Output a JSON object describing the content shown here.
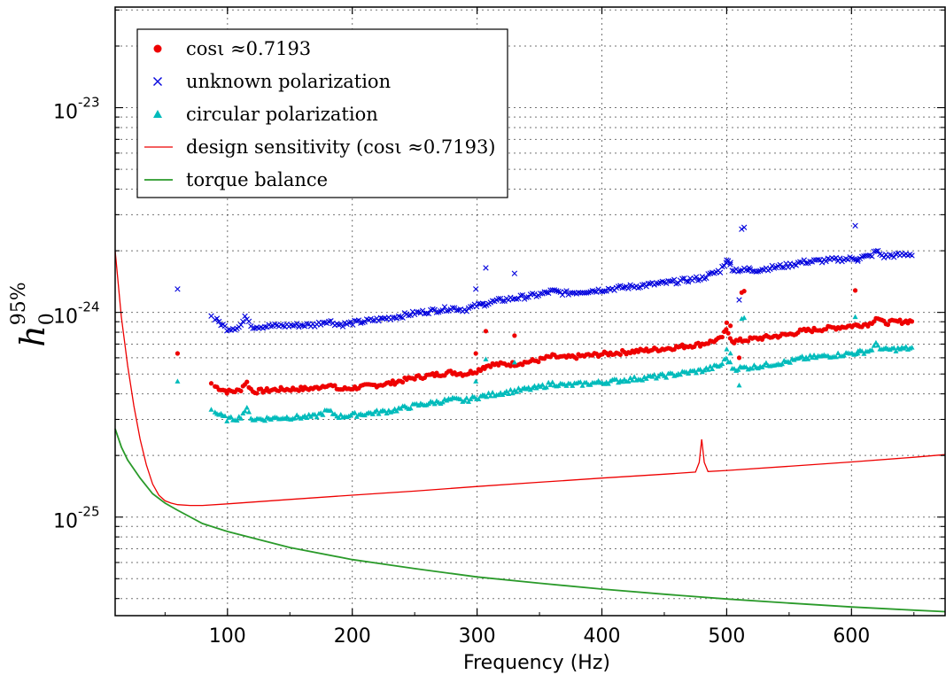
{
  "chart_data": {
    "type": "scatter",
    "title": "",
    "xlabel": "Frequency (Hz)",
    "ylabel": "h_0^{95%}",
    "ylabel_main": "h",
    "ylabel_sub": "0",
    "ylabel_sup": "95%",
    "xlim": [
      10,
      675
    ],
    "ylim": [
      3.3e-26,
      3.1e-23
    ],
    "yscale": "log",
    "grid": true,
    "legend_position": "top-left",
    "x_ticks": [
      {
        "value": 100,
        "label": "100"
      },
      {
        "value": 200,
        "label": "200"
      },
      {
        "value": 300,
        "label": "300"
      },
      {
        "value": 400,
        "label": "400"
      },
      {
        "value": 500,
        "label": "500"
      },
      {
        "value": 600,
        "label": "600"
      }
    ],
    "y_ticks": [
      {
        "value": 1e-25,
        "base": "10",
        "exp": "-25"
      },
      {
        "value": 1e-24,
        "base": "10",
        "exp": "-24"
      },
      {
        "value": 1e-23,
        "base": "10",
        "exp": "-23"
      }
    ],
    "series": [
      {
        "name": "cosι ≈0.7193",
        "marker": "circle",
        "color": "#ee0000",
        "anchors": [
          [
            90,
            4.35e-25
          ],
          [
            100,
            4.1e-25
          ],
          [
            110,
            4.15e-25
          ],
          [
            115,
            4.6e-25
          ],
          [
            120,
            4.1e-25
          ],
          [
            140,
            4.2e-25
          ],
          [
            170,
            4.25e-25
          ],
          [
            180,
            4.45e-25
          ],
          [
            190,
            4.2e-25
          ],
          [
            230,
            4.5e-25
          ],
          [
            250,
            4.8e-25
          ],
          [
            280,
            5.1e-25
          ],
          [
            290,
            5e-25
          ],
          [
            300,
            5.2e-25
          ],
          [
            310,
            5.55e-25
          ],
          [
            330,
            5.6e-25
          ],
          [
            350,
            5.85e-25
          ],
          [
            360,
            6.1e-25
          ],
          [
            370,
            6e-25
          ],
          [
            400,
            6.25e-25
          ],
          [
            450,
            6.65e-25
          ],
          [
            480,
            7e-25
          ],
          [
            495,
            7.4e-25
          ],
          [
            500,
            8.2e-25
          ],
          [
            505,
            7.2e-25
          ],
          [
            520,
            7.4e-25
          ],
          [
            550,
            7.8e-25
          ],
          [
            560,
            8.1e-25
          ],
          [
            600,
            8.6e-25
          ],
          [
            615,
            8.8e-25
          ],
          [
            620,
            9.5e-25
          ],
          [
            625,
            8.9e-25
          ],
          [
            650,
            9.1e-25
          ]
        ],
        "outliers": [
          [
            60,
            6.3e-25
          ],
          [
            87,
            4.5e-25
          ],
          [
            299,
            6.3e-25
          ],
          [
            305,
            5.4e-25
          ],
          [
            307,
            8.1e-25
          ],
          [
            330,
            7.7e-25
          ],
          [
            500,
            8.9e-25
          ],
          [
            503,
            8.6e-25
          ],
          [
            510,
            6e-25
          ],
          [
            512,
            1.25e-24
          ],
          [
            514,
            1.27e-24
          ],
          [
            603,
            1.28e-24
          ],
          [
            605,
            8.6e-25
          ]
        ]
      },
      {
        "name": "unknown polarization",
        "marker": "x",
        "color": "#0000dd",
        "anchors": [
          [
            90,
            9.3e-25
          ],
          [
            100,
            8.3e-25
          ],
          [
            110,
            8.5e-25
          ],
          [
            115,
            9.6e-25
          ],
          [
            120,
            8.5e-25
          ],
          [
            140,
            8.6e-25
          ],
          [
            170,
            8.7e-25
          ],
          [
            180,
            9.1e-25
          ],
          [
            190,
            8.7e-25
          ],
          [
            230,
            9.4e-25
          ],
          [
            250,
            9.9e-25
          ],
          [
            280,
            1.05e-24
          ],
          [
            290,
            1.03e-24
          ],
          [
            300,
            1.08e-24
          ],
          [
            320,
            1.15e-24
          ],
          [
            350,
            1.22e-24
          ],
          [
            360,
            1.27e-24
          ],
          [
            370,
            1.24e-24
          ],
          [
            400,
            1.29e-24
          ],
          [
            450,
            1.39e-24
          ],
          [
            480,
            1.47e-24
          ],
          [
            495,
            1.6e-24
          ],
          [
            500,
            1.8e-24
          ],
          [
            505,
            1.62e-24
          ],
          [
            520,
            1.6e-24
          ],
          [
            550,
            1.7e-24
          ],
          [
            560,
            1.76e-24
          ],
          [
            600,
            1.83e-24
          ],
          [
            615,
            1.88e-24
          ],
          [
            620,
            2e-24
          ],
          [
            625,
            1.88e-24
          ],
          [
            650,
            1.93e-24
          ]
        ],
        "outliers": [
          [
            60,
            1.3e-24
          ],
          [
            87,
            9.6e-25
          ],
          [
            299,
            1.3e-24
          ],
          [
            305,
            1.1e-24
          ],
          [
            307,
            1.65e-24
          ],
          [
            330,
            1.55e-24
          ],
          [
            500,
            1.8e-24
          ],
          [
            503,
            1.75e-24
          ],
          [
            510,
            1.15e-24
          ],
          [
            512,
            2.55e-24
          ],
          [
            514,
            2.6e-24
          ],
          [
            518,
            1.65e-24
          ],
          [
            603,
            2.65e-24
          ],
          [
            605,
            1.78e-24
          ]
        ]
      },
      {
        "name": "circular polarization",
        "marker": "triangle",
        "color": "#00bbbb",
        "anchors": [
          [
            90,
            3.25e-25
          ],
          [
            100,
            3e-25
          ],
          [
            110,
            3.05e-25
          ],
          [
            115,
            3.4e-25
          ],
          [
            120,
            3e-25
          ],
          [
            140,
            3.05e-25
          ],
          [
            170,
            3.1e-25
          ],
          [
            180,
            3.3e-25
          ],
          [
            190,
            3.1e-25
          ],
          [
            230,
            3.3e-25
          ],
          [
            250,
            3.5e-25
          ],
          [
            280,
            3.75e-25
          ],
          [
            290,
            3.7e-25
          ],
          [
            300,
            3.85e-25
          ],
          [
            320,
            4.05e-25
          ],
          [
            350,
            4.3e-25
          ],
          [
            360,
            4.5e-25
          ],
          [
            370,
            4.4e-25
          ],
          [
            400,
            4.55e-25
          ],
          [
            450,
            4.9e-25
          ],
          [
            480,
            5.2e-25
          ],
          [
            495,
            5.5e-25
          ],
          [
            500,
            6e-25
          ],
          [
            505,
            5.3e-25
          ],
          [
            520,
            5.4e-25
          ],
          [
            550,
            5.75e-25
          ],
          [
            560,
            5.95e-25
          ],
          [
            600,
            6.3e-25
          ],
          [
            615,
            6.5e-25
          ],
          [
            620,
            7e-25
          ],
          [
            625,
            6.55e-25
          ],
          [
            650,
            6.7e-25
          ]
        ],
        "outliers": [
          [
            60,
            4.6e-25
          ],
          [
            87,
            3.35e-25
          ],
          [
            299,
            4.6e-25
          ],
          [
            305,
            3.9e-25
          ],
          [
            307,
            5.9e-25
          ],
          [
            330,
            5.7e-25
          ],
          [
            500,
            6.6e-25
          ],
          [
            503,
            6.3e-25
          ],
          [
            510,
            4.4e-25
          ],
          [
            512,
            9.3e-25
          ],
          [
            514,
            9.4e-25
          ],
          [
            603,
            9.5e-25
          ],
          [
            605,
            6.3e-25
          ]
        ]
      },
      {
        "name": "design sensitivity (cosι ≈0.7193)",
        "marker": "line",
        "color": "#ee0000",
        "points": [
          [
            10,
            2e-24
          ],
          [
            15,
            9.5e-25
          ],
          [
            20,
            5.5e-25
          ],
          [
            25,
            3.5e-25
          ],
          [
            30,
            2.4e-25
          ],
          [
            35,
            1.8e-25
          ],
          [
            40,
            1.45e-25
          ],
          [
            45,
            1.28e-25
          ],
          [
            50,
            1.2e-25
          ],
          [
            55,
            1.17e-25
          ],
          [
            60,
            1.15e-25
          ],
          [
            70,
            1.14e-25
          ],
          [
            80,
            1.14e-25
          ],
          [
            100,
            1.16e-25
          ],
          [
            150,
            1.22e-25
          ],
          [
            200,
            1.28e-25
          ],
          [
            250,
            1.34e-25
          ],
          [
            300,
            1.41e-25
          ],
          [
            350,
            1.48e-25
          ],
          [
            400,
            1.55e-25
          ],
          [
            450,
            1.62e-25
          ],
          [
            475,
            1.66e-25
          ],
          [
            478,
            1.85e-25
          ],
          [
            480,
            2.4e-25
          ],
          [
            482,
            1.85e-25
          ],
          [
            485,
            1.67e-25
          ],
          [
            500,
            1.69e-25
          ],
          [
            550,
            1.77e-25
          ],
          [
            600,
            1.86e-25
          ],
          [
            650,
            1.96e-25
          ],
          [
            675,
            2.02e-25
          ]
        ]
      },
      {
        "name": "torque balance",
        "marker": "line",
        "color": "#2a9a2a",
        "points": [
          [
            10,
            2.7e-25
          ],
          [
            15,
            2.2e-25
          ],
          [
            20,
            1.9e-25
          ],
          [
            30,
            1.55e-25
          ],
          [
            40,
            1.3e-25
          ],
          [
            50,
            1.17e-25
          ],
          [
            60,
            1.08e-25
          ],
          [
            80,
            9.3e-26
          ],
          [
            100,
            8.5e-26
          ],
          [
            150,
            7.1e-26
          ],
          [
            200,
            6.2e-26
          ],
          [
            250,
            5.6e-26
          ],
          [
            300,
            5.1e-26
          ],
          [
            350,
            4.75e-26
          ],
          [
            400,
            4.45e-26
          ],
          [
            450,
            4.2e-26
          ],
          [
            500,
            3.98e-26
          ],
          [
            550,
            3.8e-26
          ],
          [
            600,
            3.64e-26
          ],
          [
            650,
            3.51e-26
          ],
          [
            675,
            3.45e-26
          ]
        ]
      }
    ]
  }
}
